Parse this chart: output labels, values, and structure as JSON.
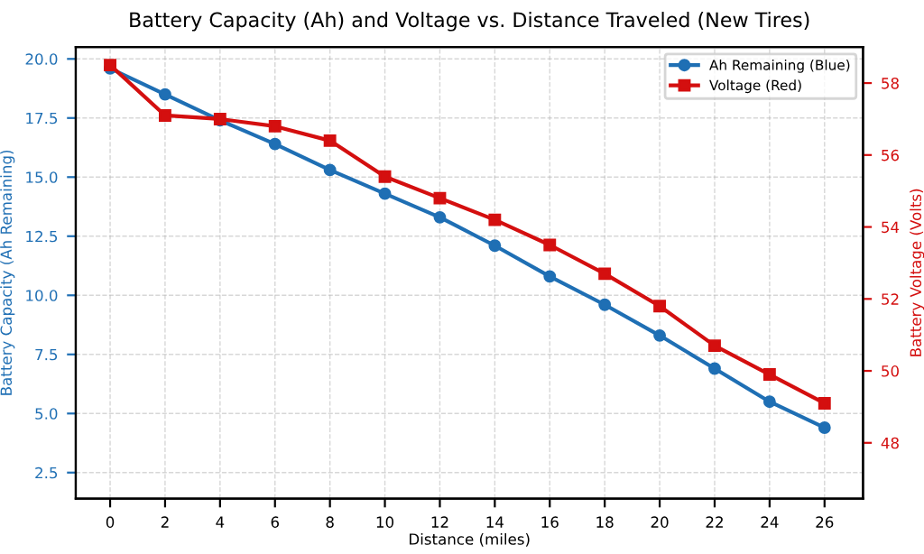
{
  "chart_data": {
    "type": "line",
    "title": "Battery Capacity (Ah) and Voltage vs. Distance Traveled (New Tires)",
    "xlabel": "Distance (miles)",
    "ylabel": "Battery Capacity (Ah Remaining)",
    "y2label": "Battery Voltage (Volts)",
    "x": [
      0,
      2,
      4,
      6,
      8,
      10,
      12,
      14,
      16,
      18,
      20,
      22,
      24,
      26
    ],
    "series": [
      {
        "name": "Ah Remaining (Blue)",
        "color": "#1f6fb4",
        "marker": "circle",
        "values": [
          19.6,
          18.5,
          17.4,
          16.4,
          15.3,
          14.3,
          13.3,
          12.1,
          10.8,
          9.6,
          8.3,
          6.9,
          5.5,
          4.4
        ]
      },
      {
        "name": "Voltage (Red)",
        "color": "#d40f0f",
        "marker": "square",
        "axis": "y2",
        "values": [
          58.5,
          57.1,
          57.0,
          56.8,
          56.4,
          55.4,
          54.8,
          54.2,
          53.5,
          52.7,
          51.8,
          50.7,
          49.9,
          49.1
        ]
      }
    ],
    "xlim": [
      -1.25,
      27.4
    ],
    "xticks": [
      0,
      2,
      4,
      6,
      8,
      10,
      12,
      14,
      16,
      18,
      20,
      22,
      24,
      26
    ],
    "ylim": [
      1.4,
      20.5
    ],
    "yticks": [
      {
        "value": 2.5,
        "label": "2.5"
      },
      {
        "value": 5,
        "label": "5.0"
      },
      {
        "value": 7.5,
        "label": "7.5"
      },
      {
        "value": 10,
        "label": "10.0"
      },
      {
        "value": 12.5,
        "label": "12.5"
      },
      {
        "value": 15,
        "label": "15.0"
      },
      {
        "value": 17.5,
        "label": "17.5"
      },
      {
        "value": 20,
        "label": "20.0"
      }
    ],
    "y2lim": [
      46.45,
      59.0
    ],
    "y2ticks": [
      48,
      50,
      52,
      54,
      56,
      58
    ],
    "grid": true,
    "legend": "top right"
  }
}
